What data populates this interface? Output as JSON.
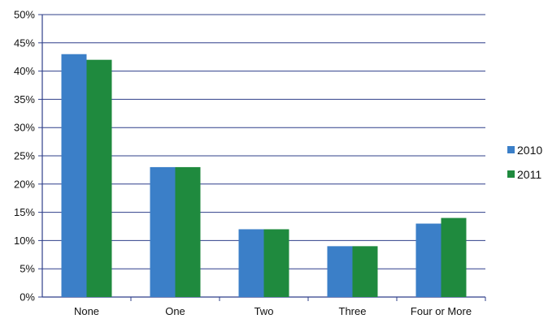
{
  "chart_data": {
    "type": "bar",
    "title": "",
    "xlabel": "",
    "ylabel": "",
    "categories": [
      "None",
      "One",
      "Two",
      "Three",
      "Four or More"
    ],
    "series": [
      {
        "name": "2010",
        "values": [
          43,
          23,
          12,
          9,
          13
        ],
        "color": "#3b7fc8"
      },
      {
        "name": "2011",
        "values": [
          42,
          23,
          12,
          9,
          14
        ],
        "color": "#1f8a3e"
      }
    ],
    "ylim": [
      0,
      50
    ],
    "y_ticks": [
      "0%",
      "5%",
      "10%",
      "15%",
      "20%",
      "25%",
      "30%",
      "35%",
      "40%",
      "45%",
      "50%"
    ],
    "grid": true,
    "legend_placement": "right"
  }
}
